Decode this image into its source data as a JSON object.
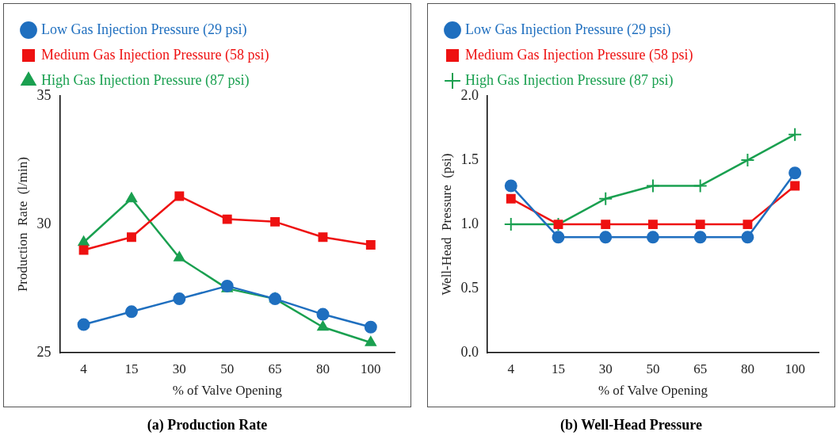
{
  "chart_data": [
    {
      "type": "line",
      "title": "(a) Production Rate",
      "xlabel": "% of Valve Opening",
      "ylabel": "Production  Rate  (l/min)",
      "categories": [
        "4",
        "15",
        "30",
        "50",
        "65",
        "80",
        "100"
      ],
      "ylim": [
        25,
        35
      ],
      "yticks": [
        25,
        30,
        35
      ],
      "grid": false,
      "legend": "top left",
      "series": [
        {
          "name": "Low Gas Injection Pressure (29 psi)",
          "color": "#1f6fbf",
          "marker": "circle",
          "values": [
            26.1,
            26.6,
            27.1,
            27.6,
            27.1,
            26.5,
            26.0
          ]
        },
        {
          "name": "Medium Gas Injection Pressure (58 psi)",
          "color": "#ee1111",
          "marker": "square",
          "values": [
            29.0,
            29.5,
            31.1,
            30.2,
            30.1,
            29.5,
            29.2
          ]
        },
        {
          "name": "High Gas Injection Pressure (87 psi)",
          "color": "#1aa050",
          "marker": "triangle",
          "values": [
            29.3,
            31.0,
            28.7,
            27.5,
            27.1,
            26.0,
            25.4
          ]
        }
      ]
    },
    {
      "type": "line",
      "title": "(b) Well-Head Pressure",
      "xlabel": "% of Valve Opening",
      "ylabel": "Well-Head  Pressure  (psi)",
      "categories": [
        "4",
        "15",
        "30",
        "50",
        "65",
        "80",
        "100"
      ],
      "ylim": [
        0,
        2
      ],
      "yticks": [
        {
          "value": 0,
          "label": "0.0"
        },
        {
          "value": 0.5,
          "label": "0.5"
        },
        {
          "value": 1,
          "label": "1.0"
        },
        {
          "value": 1.5,
          "label": "1.5"
        },
        {
          "value": 2,
          "label": "2.0"
        }
      ],
      "grid": false,
      "legend": "top left",
      "series": [
        {
          "name": "Low Gas Injection Pressure (29 psi)",
          "color": "#1f6fbf",
          "marker": "circle",
          "values": [
            1.3,
            0.9,
            0.9,
            0.9,
            0.9,
            0.9,
            1.4
          ]
        },
        {
          "name": "Medium Gas Injection Pressure (58 psi)",
          "color": "#ee1111",
          "marker": "square",
          "values": [
            1.2,
            1.0,
            1.0,
            1.0,
            1.0,
            1.0,
            1.3
          ]
        },
        {
          "name": "High Gas Injection Pressure (87 psi)",
          "color": "#1aa050",
          "marker": "cross",
          "values": [
            1.0,
            1.0,
            1.2,
            1.3,
            1.3,
            1.5,
            1.7
          ]
        }
      ]
    }
  ]
}
